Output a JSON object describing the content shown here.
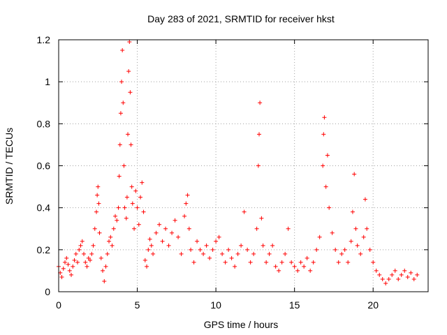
{
  "chart_data": {
    "type": "scatter",
    "title": "Day 283 of 2021, SRMTID for receiver hkst",
    "xlabel": "GPS time / hours",
    "ylabel": "SRMTID / TECUs",
    "xlim": [
      0,
      23.5
    ],
    "ylim": [
      0,
      1.2
    ],
    "xticks": [
      0,
      5,
      10,
      15,
      20
    ],
    "xtick_labels": [
      "0",
      "5",
      "10",
      "15",
      "20"
    ],
    "yticks": [
      0,
      0.2,
      0.4,
      0.6,
      0.8,
      1.0,
      1.2
    ],
    "ytick_labels": [
      "0",
      "0.2",
      "0.4",
      "0.6",
      "0.8",
      "1",
      "1.2"
    ],
    "grid": true,
    "marker": "plus",
    "series": [
      {
        "name": "SRMTID",
        "color": "#ff0000",
        "points": [
          [
            0.0,
            0.12
          ],
          [
            0.1,
            0.09
          ],
          [
            0.2,
            0.07
          ],
          [
            0.3,
            0.11
          ],
          [
            0.4,
            0.14
          ],
          [
            0.5,
            0.16
          ],
          [
            0.6,
            0.13
          ],
          [
            0.7,
            0.1
          ],
          [
            0.8,
            0.08
          ],
          [
            0.9,
            0.12
          ],
          [
            1.0,
            0.15
          ],
          [
            1.1,
            0.18
          ],
          [
            1.2,
            0.14
          ],
          [
            1.3,
            0.2
          ],
          [
            1.4,
            0.22
          ],
          [
            1.5,
            0.24
          ],
          [
            1.6,
            0.18
          ],
          [
            1.7,
            0.14
          ],
          [
            1.8,
            0.12
          ],
          [
            1.9,
            0.16
          ],
          [
            2.0,
            0.15
          ],
          [
            2.1,
            0.18
          ],
          [
            2.2,
            0.22
          ],
          [
            2.3,
            0.3
          ],
          [
            2.4,
            0.38
          ],
          [
            2.45,
            0.46
          ],
          [
            2.5,
            0.5
          ],
          [
            2.55,
            0.42
          ],
          [
            2.6,
            0.28
          ],
          [
            2.7,
            0.16
          ],
          [
            2.8,
            0.1
          ],
          [
            2.9,
            0.05
          ],
          [
            3.0,
            0.12
          ],
          [
            3.1,
            0.18
          ],
          [
            3.2,
            0.24
          ],
          [
            3.3,
            0.26
          ],
          [
            3.4,
            0.22
          ],
          [
            3.5,
            0.3
          ],
          [
            3.6,
            0.36
          ],
          [
            3.7,
            0.34
          ],
          [
            3.8,
            0.4
          ],
          [
            3.85,
            0.55
          ],
          [
            3.9,
            0.7
          ],
          [
            3.95,
            0.85
          ],
          [
            4.0,
            1.0
          ],
          [
            4.05,
            1.15
          ],
          [
            4.1,
            0.9
          ],
          [
            4.15,
            0.6
          ],
          [
            4.2,
            0.4
          ],
          [
            4.3,
            0.35
          ],
          [
            4.35,
            0.45
          ],
          [
            4.4,
            0.75
          ],
          [
            4.45,
            1.05
          ],
          [
            4.5,
            1.19
          ],
          [
            4.55,
            0.95
          ],
          [
            4.6,
            0.7
          ],
          [
            4.65,
            0.5
          ],
          [
            4.7,
            0.42
          ],
          [
            4.8,
            0.3
          ],
          [
            4.9,
            0.48
          ],
          [
            5.0,
            0.4
          ],
          [
            5.1,
            0.32
          ],
          [
            5.2,
            0.45
          ],
          [
            5.3,
            0.52
          ],
          [
            5.4,
            0.38
          ],
          [
            5.5,
            0.15
          ],
          [
            5.6,
            0.12
          ],
          [
            5.7,
            0.2
          ],
          [
            5.8,
            0.25
          ],
          [
            5.9,
            0.22
          ],
          [
            6.0,
            0.18
          ],
          [
            6.2,
            0.28
          ],
          [
            6.4,
            0.32
          ],
          [
            6.6,
            0.24
          ],
          [
            6.8,
            0.3
          ],
          [
            7.0,
            0.22
          ],
          [
            7.2,
            0.28
          ],
          [
            7.4,
            0.34
          ],
          [
            7.6,
            0.26
          ],
          [
            7.8,
            0.18
          ],
          [
            8.0,
            0.36
          ],
          [
            8.1,
            0.42
          ],
          [
            8.2,
            0.46
          ],
          [
            8.3,
            0.3
          ],
          [
            8.4,
            0.2
          ],
          [
            8.6,
            0.14
          ],
          [
            8.8,
            0.24
          ],
          [
            9.0,
            0.2
          ],
          [
            9.2,
            0.18
          ],
          [
            9.4,
            0.22
          ],
          [
            9.6,
            0.16
          ],
          [
            9.8,
            0.2
          ],
          [
            10.0,
            0.24
          ],
          [
            10.2,
            0.26
          ],
          [
            10.4,
            0.18
          ],
          [
            10.6,
            0.14
          ],
          [
            10.8,
            0.2
          ],
          [
            11.0,
            0.16
          ],
          [
            11.2,
            0.12
          ],
          [
            11.4,
            0.18
          ],
          [
            11.6,
            0.22
          ],
          [
            11.8,
            0.38
          ],
          [
            12.0,
            0.2
          ],
          [
            12.2,
            0.14
          ],
          [
            12.4,
            0.18
          ],
          [
            12.6,
            0.3
          ],
          [
            12.7,
            0.6
          ],
          [
            12.75,
            0.75
          ],
          [
            12.8,
            0.9
          ],
          [
            12.9,
            0.35
          ],
          [
            13.0,
            0.22
          ],
          [
            13.2,
            0.14
          ],
          [
            13.4,
            0.18
          ],
          [
            13.6,
            0.22
          ],
          [
            13.8,
            0.12
          ],
          [
            14.0,
            0.1
          ],
          [
            14.2,
            0.14
          ],
          [
            14.4,
            0.18
          ],
          [
            14.6,
            0.3
          ],
          [
            14.8,
            0.14
          ],
          [
            15.0,
            0.12
          ],
          [
            15.2,
            0.1
          ],
          [
            15.4,
            0.14
          ],
          [
            15.6,
            0.12
          ],
          [
            15.8,
            0.16
          ],
          [
            16.0,
            0.1
          ],
          [
            16.2,
            0.14
          ],
          [
            16.4,
            0.2
          ],
          [
            16.6,
            0.26
          ],
          [
            16.8,
            0.6
          ],
          [
            16.85,
            0.75
          ],
          [
            16.9,
            0.83
          ],
          [
            17.0,
            0.5
          ],
          [
            17.1,
            0.65
          ],
          [
            17.2,
            0.4
          ],
          [
            17.4,
            0.28
          ],
          [
            17.6,
            0.2
          ],
          [
            17.8,
            0.14
          ],
          [
            18.0,
            0.18
          ],
          [
            18.2,
            0.2
          ],
          [
            18.4,
            0.14
          ],
          [
            18.6,
            0.24
          ],
          [
            18.7,
            0.38
          ],
          [
            18.8,
            0.56
          ],
          [
            18.9,
            0.3
          ],
          [
            19.0,
            0.22
          ],
          [
            19.2,
            0.18
          ],
          [
            19.4,
            0.26
          ],
          [
            19.5,
            0.44
          ],
          [
            19.6,
            0.3
          ],
          [
            19.8,
            0.2
          ],
          [
            20.0,
            0.14
          ],
          [
            20.2,
            0.1
          ],
          [
            20.4,
            0.08
          ],
          [
            20.6,
            0.06
          ],
          [
            20.8,
            0.04
          ],
          [
            21.0,
            0.06
          ],
          [
            21.2,
            0.08
          ],
          [
            21.4,
            0.1
          ],
          [
            21.6,
            0.06
          ],
          [
            21.8,
            0.08
          ],
          [
            22.0,
            0.1
          ],
          [
            22.2,
            0.07
          ],
          [
            22.4,
            0.09
          ],
          [
            22.6,
            0.06
          ],
          [
            22.8,
            0.08
          ]
        ]
      }
    ]
  }
}
